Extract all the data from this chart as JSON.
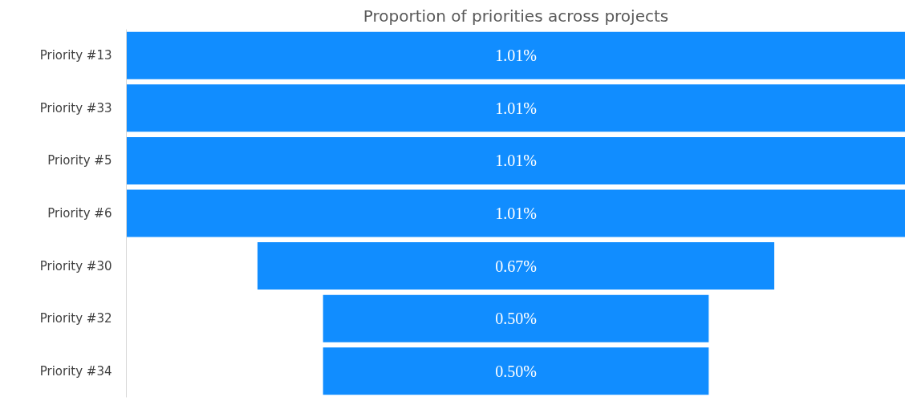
{
  "chart_data": {
    "type": "other",
    "title": "Proportion of priorities across projects",
    "categories": [
      "Priority #13",
      "Priority #33",
      "Priority #5",
      "Priority #6",
      "Priority #30",
      "Priority #32",
      "Priority #34"
    ],
    "values": [
      1.01,
      1.01,
      1.01,
      1.01,
      0.67,
      0.5,
      0.5
    ],
    "value_labels": [
      "1.01%",
      "1.01%",
      "1.01%",
      "1.01%",
      "0.67%",
      "0.50%",
      "0.50%"
    ],
    "color": "#118dff"
  }
}
